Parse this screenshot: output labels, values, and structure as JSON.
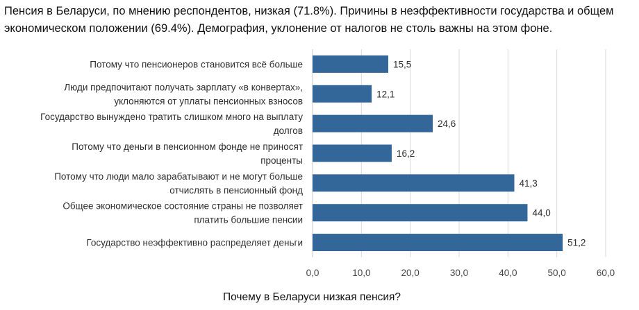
{
  "intro": "Пенсия в Беларуси, по мнению респондентов, низкая (71.8%). Причины в неэффективности государства и общем экономическом положении (69.4%). Демография, уклонение от налогов не столь важны на этом фоне.",
  "chart_data": {
    "type": "bar",
    "orientation": "horizontal",
    "title": "Почему в Беларуси низкая пенсия?",
    "xlabel": "",
    "ylabel": "",
    "xlim": [
      0,
      60
    ],
    "x_ticks": [
      "0,0",
      "10,0",
      "20,0",
      "30,0",
      "40,0",
      "50,0",
      "60,0"
    ],
    "grid": "vertical",
    "legend": "none",
    "bar_color": "#336699",
    "categories": [
      [
        "Потому что пенсионеров становится всё больше"
      ],
      [
        "Люди предпочитают получать зарплату «в конвертах»,",
        "уклоняются от уплаты пенсионных взносов"
      ],
      [
        "Государство вынуждено тратить слишком много на выплату",
        "долгов"
      ],
      [
        "Потому что деньги в пенсионном фонде не приносят",
        "проценты"
      ],
      [
        "Потому что люди мало зарабатывают и не могут больше",
        "отчислять в пенсионный фонд"
      ],
      [
        "Общее экономическое состояние страны не позволяет",
        "платить большие пенсии"
      ],
      [
        "Государство неэффективно распределяет деньги"
      ]
    ],
    "values": [
      15.5,
      12.1,
      24.6,
      16.2,
      41.3,
      44.0,
      51.2
    ],
    "data_labels": [
      "15,5",
      "12,1",
      "24,6",
      "16,2",
      "41,3",
      "44,0",
      "51,2"
    ]
  }
}
